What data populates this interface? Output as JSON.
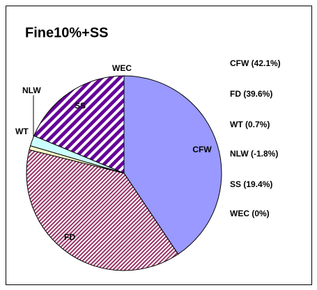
{
  "chart_data": {
    "type": "pie",
    "title": "Fine10%+SS",
    "categories": [
      "CFW",
      "FD",
      "WT",
      "NLW",
      "SS",
      "WEC"
    ],
    "values": [
      42.1,
      39.6,
      0.7,
      -1.8,
      19.4,
      0
    ],
    "legend": [
      "CFW (42.1%)",
      "FD (39.6%)",
      "WT (0.7%)",
      "NLW (-1.8%)",
      "SS (19.4%)",
      "WEC (0%)"
    ],
    "colors": [
      "#9999ff",
      "#993366",
      "#ffffcc",
      "#ccffff",
      "#660099",
      "#ff8080"
    ],
    "patterns": [
      null,
      "fine-diagonal",
      null,
      null,
      "wide-diagonal",
      null
    ]
  }
}
